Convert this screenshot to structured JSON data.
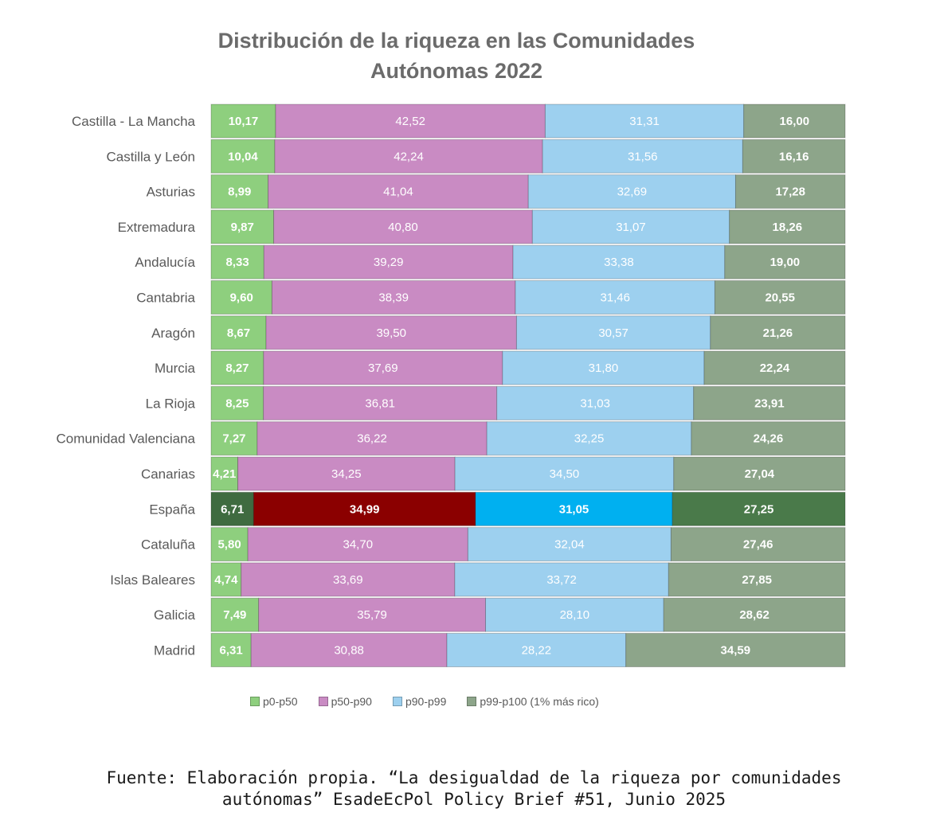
{
  "title_line1": "Distribución de la riqueza en las Comunidades",
  "title_line2": "Autónomas 2022",
  "source_line1": "Fuente: Elaboración propia. “La desigualdad de la riqueza por comunidades",
  "source_line2": "autónomas”  EsadeEcPol Policy Brief #51, Junio 2025",
  "colors": {
    "p0_p50": "#8ecf7e",
    "p50_p90": "#c98bc3",
    "p90_p99": "#9dd0ef",
    "p99_p100": "#8da58a",
    "highlight_p0_p50": "#3f6b40",
    "highlight_p50_p90": "#8b0000",
    "highlight_p90_p99": "#00b0f0",
    "highlight_p99_p100": "#4a7a4a"
  },
  "chart_data": {
    "type": "bar",
    "orientation": "horizontal",
    "stacked": "100%",
    "title": "Distribución de la riqueza en las Comunidades Autónomas 2022",
    "categories": [
      "Castilla - La Mancha",
      "Castilla y León",
      "Asturias",
      "Extremadura",
      "Andalucía",
      "Cantabria",
      "Aragón",
      "Murcia",
      "La Rioja",
      "Comunidad Valenciana",
      "Canarias",
      "España",
      "Cataluña",
      "Islas Baleares",
      "Galicia",
      "Madrid"
    ],
    "highlight_category": "España",
    "series": [
      {
        "name": "p0-p50",
        "labels": [
          "10,17",
          "10,04",
          "8,99",
          "9,87",
          "8,33",
          "9,60",
          "8,67",
          "8,27",
          "8,25",
          "7,27",
          "4,21",
          "6,71",
          "5,80",
          "4,74",
          "7,49",
          "6,31"
        ],
        "values": [
          10.17,
          10.04,
          8.99,
          9.87,
          8.33,
          9.6,
          8.67,
          8.27,
          8.25,
          7.27,
          4.21,
          6.71,
          5.8,
          4.74,
          7.49,
          6.31
        ]
      },
      {
        "name": "p50-p90",
        "labels": [
          "42,52",
          "42,24",
          "41,04",
          "40,80",
          "39,29",
          "38,39",
          "39,50",
          "37,69",
          "36,81",
          "36,22",
          "34,25",
          "34,99",
          "34,70",
          "33,69",
          "35,79",
          "30,88"
        ],
        "values": [
          42.52,
          42.24,
          41.04,
          40.8,
          39.29,
          38.39,
          39.5,
          37.69,
          36.81,
          36.22,
          34.25,
          34.99,
          34.7,
          33.69,
          35.79,
          30.88
        ]
      },
      {
        "name": "p90-p99",
        "labels": [
          "31,31",
          "31,56",
          "32,69",
          "31,07",
          "33,38",
          "31,46",
          "30,57",
          "31,80",
          "31,03",
          "32,25",
          "34,50",
          "31,05",
          "32,04",
          "33,72",
          "28,10",
          "28,22"
        ],
        "values": [
          31.31,
          31.56,
          32.69,
          31.07,
          33.38,
          31.46,
          30.57,
          31.8,
          31.03,
          32.25,
          34.5,
          31.05,
          32.04,
          33.72,
          28.1,
          28.22
        ]
      },
      {
        "name": "p99-p100 (1% más rico)",
        "labels": [
          "16,00",
          "16,16",
          "17,28",
          "18,26",
          "19,00",
          "20,55",
          "21,26",
          "22,24",
          "23,91",
          "24,26",
          "27,04",
          "27,25",
          "27,46",
          "27,85",
          "28,62",
          "34,59"
        ],
        "values": [
          16.0,
          16.16,
          17.28,
          18.26,
          19.0,
          20.55,
          21.26,
          22.24,
          23.91,
          24.26,
          27.04,
          27.25,
          27.46,
          27.85,
          28.62,
          34.59
        ]
      }
    ],
    "xlim": [
      0,
      100
    ],
    "legend_position": "bottom",
    "grid": false
  }
}
